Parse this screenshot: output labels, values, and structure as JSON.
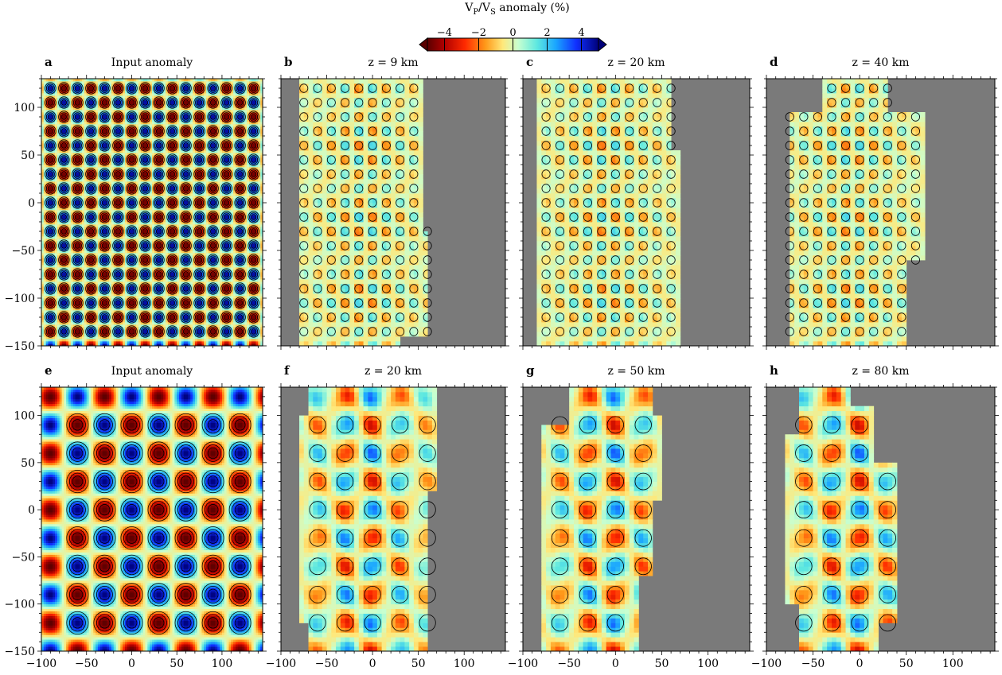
{
  "colorbar": {
    "title": "V_P/V_S anomaly (%)",
    "title_main": "V",
    "title_sub1": "P",
    "title_mid": "/V",
    "title_sub2": "S",
    "title_tail": " anomaly (%)",
    "ticks": [
      -4,
      -2,
      0,
      2,
      4
    ],
    "tick_labels": [
      "−4",
      "−2",
      "0",
      "2",
      "4"
    ],
    "range": [
      -5,
      5
    ],
    "colors": [
      "#5a0000",
      "#b00000",
      "#ff2a00",
      "#ff9a1a",
      "#ffe87a",
      "#c8ffd0",
      "#5ee8e0",
      "#1aa6ff",
      "#1030ff",
      "#00007a"
    ]
  },
  "chart_data": [
    {
      "id": "a",
      "type": "heatmap",
      "label": "a",
      "title": "Input anomaly",
      "pattern": "checkerboard",
      "period_x": 15,
      "period_y": 15,
      "amplitude": 5,
      "xlim": [
        -100,
        145
      ],
      "ylim": [
        -150,
        130
      ],
      "yticks": [
        -150,
        -100,
        -50,
        0,
        50,
        100
      ],
      "ytick_labels": [
        "−150",
        "−100",
        "−50",
        "0",
        "50",
        "100"
      ]
    },
    {
      "id": "b",
      "type": "heatmap",
      "label": "b",
      "title": "z = 9 km",
      "pattern": "recovered",
      "period_x": 15,
      "period_y": 15,
      "xlim": [
        -100,
        145
      ],
      "ylim": [
        -150,
        130
      ]
    },
    {
      "id": "c",
      "type": "heatmap",
      "label": "c",
      "title": "z = 20 km",
      "pattern": "recovered",
      "period_x": 15,
      "period_y": 15,
      "xlim": [
        -100,
        145
      ],
      "ylim": [
        -150,
        130
      ]
    },
    {
      "id": "d",
      "type": "heatmap",
      "label": "d",
      "title": "z = 40 km",
      "pattern": "recovered",
      "period_x": 15,
      "period_y": 15,
      "xlim": [
        -100,
        145
      ],
      "ylim": [
        -150,
        130
      ]
    },
    {
      "id": "e",
      "type": "heatmap",
      "label": "e",
      "title": "Input anomaly",
      "pattern": "checkerboard",
      "period_x": 30,
      "period_y": 30,
      "amplitude": 5,
      "xlim": [
        -100,
        145
      ],
      "ylim": [
        -150,
        130
      ],
      "xticks": [
        -100,
        -50,
        0,
        50,
        100
      ],
      "xtick_labels": [
        "−100",
        "−50",
        "0",
        "50",
        "100"
      ],
      "yticks": [
        -150,
        -100,
        -50,
        0,
        50,
        100
      ],
      "ytick_labels": [
        "−150",
        "−100",
        "−50",
        "0",
        "50",
        "100"
      ]
    },
    {
      "id": "f",
      "type": "heatmap",
      "label": "f",
      "title": "z = 20 km",
      "pattern": "recovered",
      "period_x": 30,
      "period_y": 30,
      "xlim": [
        -100,
        145
      ],
      "ylim": [
        -150,
        130
      ],
      "xticks": [
        -100,
        -50,
        0,
        50,
        100
      ],
      "xtick_labels": [
        "−100",
        "−50",
        "0",
        "50",
        "100"
      ]
    },
    {
      "id": "g",
      "type": "heatmap",
      "label": "g",
      "title": "z = 50 km",
      "pattern": "recovered",
      "period_x": 30,
      "period_y": 30,
      "xlim": [
        -100,
        145
      ],
      "ylim": [
        -150,
        130
      ],
      "xticks": [
        -100,
        -50,
        0,
        50,
        100
      ],
      "xtick_labels": [
        "−100",
        "−50",
        "0",
        "50",
        "100"
      ]
    },
    {
      "id": "h",
      "type": "heatmap",
      "label": "h",
      "title": "z = 80 km",
      "pattern": "recovered",
      "period_x": 30,
      "period_y": 30,
      "xlim": [
        -100,
        145
      ],
      "ylim": [
        -150,
        130
      ],
      "xticks": [
        -100,
        -50,
        0,
        50,
        100
      ],
      "xtick_labels": [
        "−100",
        "−50",
        "0",
        "50",
        "100"
      ]
    }
  ]
}
